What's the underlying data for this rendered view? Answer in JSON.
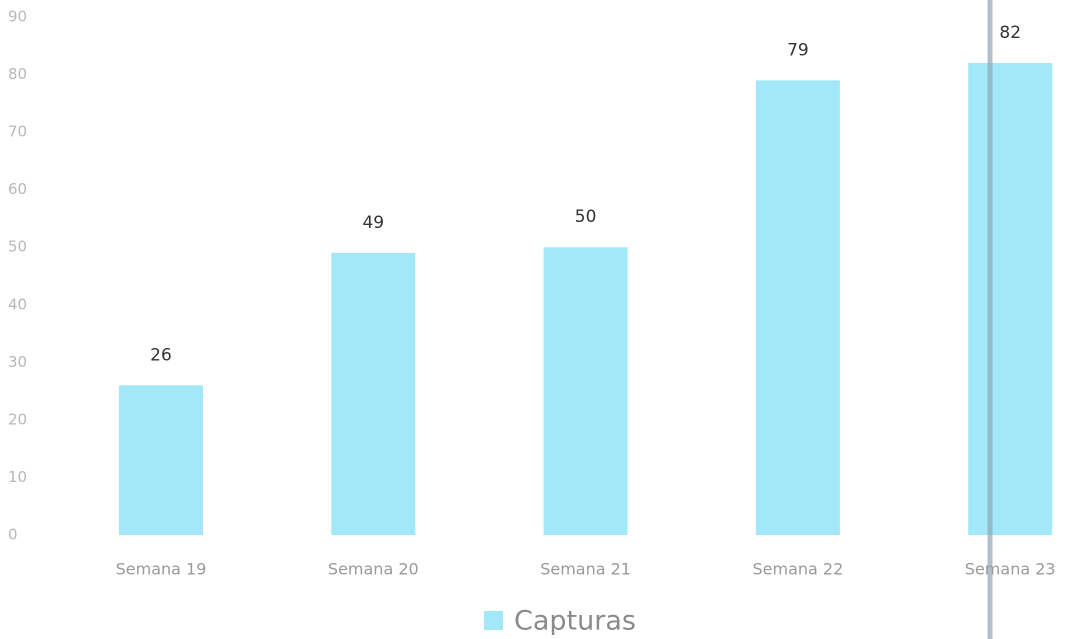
{
  "chart_data": {
    "type": "bar",
    "legend": "Capturas",
    "categories": [
      "Semana 19",
      "Semana 20",
      "Semana 21",
      "Semana 22",
      "Semana 23"
    ],
    "values": [
      26,
      49,
      50,
      79,
      82
    ],
    "color": "#a3e8f9",
    "ylim": [
      0,
      90
    ],
    "yticks": [
      0,
      10,
      20,
      30,
      40,
      50,
      60,
      70,
      80,
      90
    ],
    "grid": false,
    "legend_position": "bottom"
  }
}
